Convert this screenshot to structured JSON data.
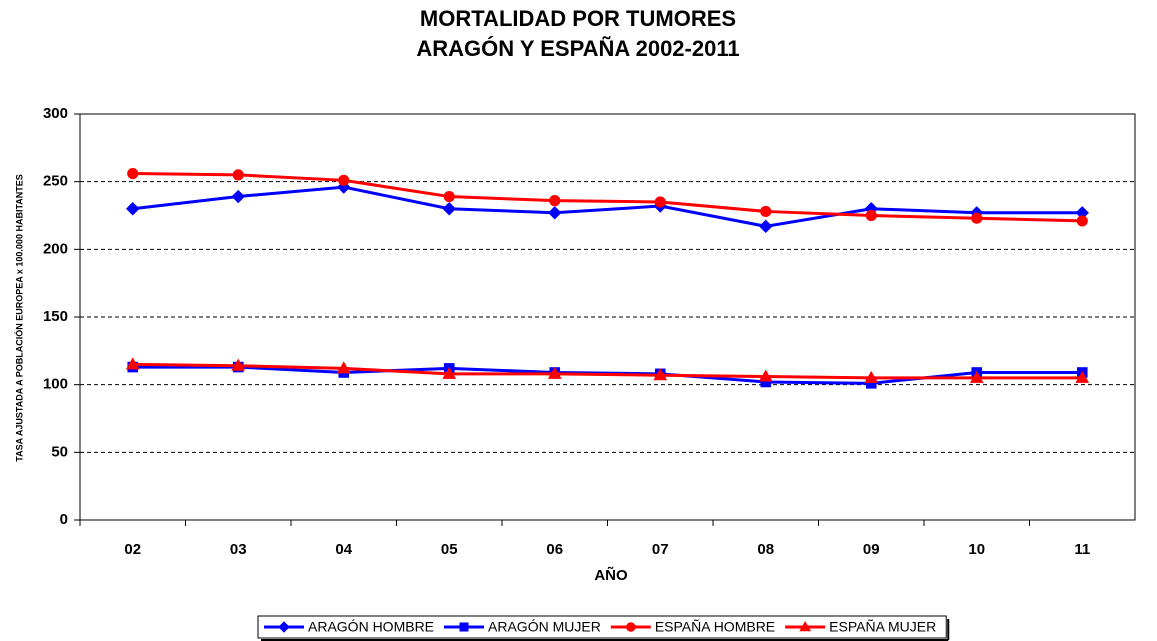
{
  "chart_data": {
    "type": "line",
    "title": "MORTALIDAD POR TUMORES",
    "subtitle": "ARAGÓN Y ESPAÑA   2002-2011",
    "x_label": "AÑO",
    "y_label": "TASA AJUSTADA A POBLACIÓN EUROPEA x 100.000 HABITANTES",
    "categories": [
      "02",
      "03",
      "04",
      "05",
      "06",
      "07",
      "08",
      "09",
      "10",
      "11"
    ],
    "series": [
      {
        "name": "ARAGÓN HOMBRE",
        "color": "#0000ff",
        "marker": "diamond",
        "values": [
          230,
          239,
          246,
          230,
          227,
          232,
          217,
          230,
          227,
          227
        ]
      },
      {
        "name": "ARAGÓN MUJER",
        "color": "#0000ff",
        "marker": "square",
        "values": [
          113,
          113,
          109,
          112,
          109,
          108,
          102,
          101,
          109,
          109
        ]
      },
      {
        "name": "ESPAÑA HOMBRE",
        "color": "#ff0000",
        "marker": "circle",
        "values": [
          256,
          255,
          251,
          239,
          236,
          235,
          228,
          225,
          223,
          221
        ]
      },
      {
        "name": "ESPAÑA MUJER",
        "color": "#ff0000",
        "marker": "triangle",
        "values": [
          115,
          114,
          112,
          108,
          108,
          107,
          106,
          105,
          105,
          105
        ]
      }
    ],
    "ylim": [
      0,
      300
    ],
    "yticks": [
      0,
      50,
      100,
      150,
      200,
      250,
      300
    ],
    "grid": true,
    "legend": "bottom"
  }
}
